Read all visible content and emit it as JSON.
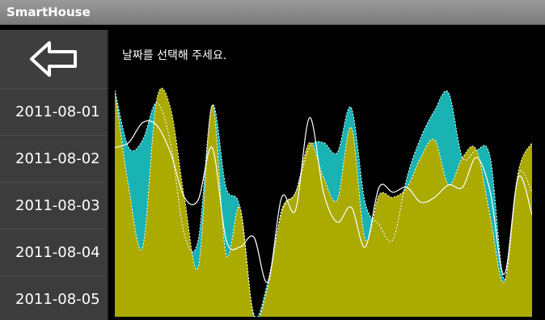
{
  "app": {
    "title": "SmartHouse"
  },
  "sidebar": {
    "back_icon": "left-arrow-icon",
    "dates": [
      "2011-08-01",
      "2011-08-02",
      "2011-08-03",
      "2011-08-04",
      "2011-08-05"
    ]
  },
  "main": {
    "hint": "날짜를 선택해 주세요."
  },
  "colors": {
    "titlebar": "#8a8a8a",
    "sidebar_bg": "#3c3c3c",
    "series_upper": "#19b3b3",
    "series_lower": "#aaaa00",
    "line": "#ffffff"
  },
  "chart_data": {
    "type": "area",
    "title": "",
    "xlabel": "",
    "ylabel": "",
    "grid": false,
    "ylim": [
      0,
      100
    ],
    "series": [
      {
        "values": [
          91,
          68,
          71,
          86,
          70,
          33,
          31,
          85,
          52,
          44,
          1,
          14,
          42,
          50,
          68,
          70,
          66,
          84,
          46,
          37,
          31,
          56,
          72,
          83,
          90,
          64,
          67,
          64,
          15,
          57,
          50
        ]
      },
      {
        "values": [
          91,
          52,
          28,
          87,
          84,
          48,
          20,
          85,
          25,
          44,
          0,
          12,
          43,
          50,
          70,
          56,
          47,
          76,
          31,
          49,
          48,
          52,
          64,
          71,
          53,
          64,
          67,
          40,
          14,
          58,
          70
        ]
      },
      {
        "values": [
          68,
          70,
          78,
          77,
          66,
          48,
          47,
          68,
          31,
          28,
          32,
          14,
          48,
          43,
          80,
          50,
          38,
          44,
          28,
          52,
          50,
          52,
          46,
          48,
          53,
          52,
          64,
          50,
          17,
          56,
          41
        ]
      }
    ]
  }
}
